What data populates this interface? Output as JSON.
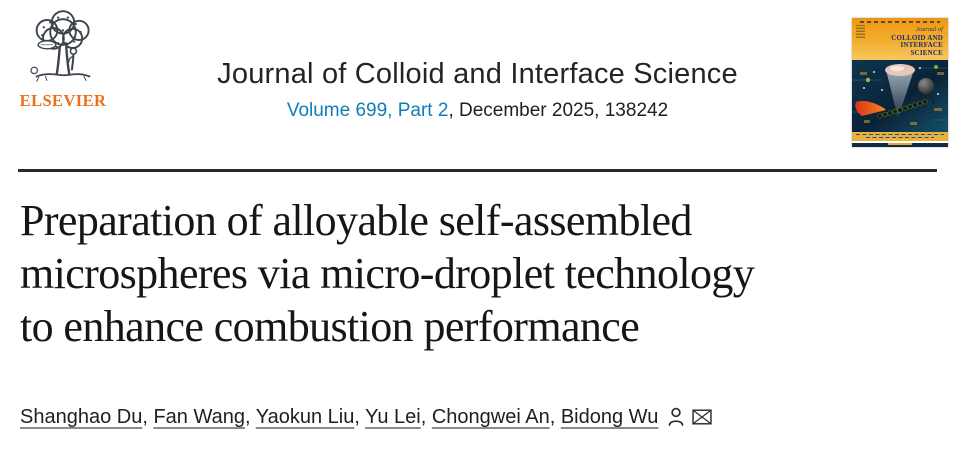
{
  "colors": {
    "elsevier_orange": "#e9711c",
    "link_blue": "#0f7db8",
    "heading_text": "#242424",
    "body_text": "#1f1f1f",
    "article_title_text": "#161616",
    "divider": "#2a2a2a",
    "cover_navy": "#1c2c6e"
  },
  "brand": {
    "wordmark": "ELSEVIER"
  },
  "journal": {
    "title": "Journal of Colloid and Interface Science",
    "volume_link": "Volume 699, Part 2",
    "issue_rest": ", December 2025, 138242"
  },
  "article": {
    "title": "Preparation of alloyable self-assembled microspheres via micro-droplet technology to enhance combustion performance",
    "title_lines": [
      "Preparation of alloyable self-assembled",
      "microspheres via micro-droplet technology",
      "to enhance combustion performance"
    ],
    "authors": [
      "Shanghao Du",
      "Fan Wang",
      "Yaokun Liu",
      "Yu Lei",
      "Chongwei An",
      "Bidong Wu"
    ],
    "author_separator": ", "
  },
  "cover": {
    "journal_name_lines": [
      "Journal of",
      "COLLOID AND",
      "INTERFACE",
      "SCIENCE"
    ]
  },
  "icons": {
    "elsevier_tree": "elsevier-tree-icon",
    "person": "author-profile-icon",
    "envelope": "corresponding-author-email-icon"
  }
}
